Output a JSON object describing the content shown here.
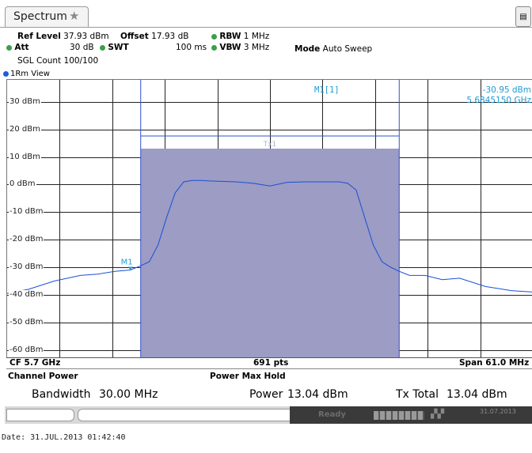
{
  "tab": {
    "title": "Spectrum",
    "star_icon": "star-icon"
  },
  "settings": {
    "ref_level_label": "Ref Level",
    "ref_level_value": "37.93 dBm",
    "offset_label": "Offset",
    "offset_value": "17.93 dB",
    "rbw_label": "RBW",
    "rbw_value": "1 MHz",
    "att_label": "Att",
    "att_value": "30 dB",
    "swt_label": "SWT",
    "swt_value": "100 ms",
    "vbw_label": "VBW",
    "vbw_value": "3 MHz",
    "mode_label": "Mode",
    "mode_value": "Auto Sweep",
    "sgl_count": "SGL Count 100/100"
  },
  "view": {
    "title": "1Rm View"
  },
  "marker": {
    "name": "M1[1]",
    "level": "-30.95 dBm",
    "freq": "5.6845150 GHz",
    "plot_label": "M1",
    "channel_label": "Tx1"
  },
  "chart_data": {
    "type": "line",
    "ylabels": [
      "30 dBm",
      "20 dBm",
      "10 dBm",
      "0 dBm",
      "-10 dBm",
      "-20 dBm",
      "-30 dBm",
      "-40 dBm",
      "-50 dBm",
      "-60 dBm"
    ],
    "y_values": [
      30,
      20,
      10,
      0,
      -10,
      -20,
      -30,
      -40,
      -50,
      -60
    ],
    "ylim": [
      -63,
      38
    ],
    "x_start_ghz": 5.6695,
    "x_center_ghz": 5.7,
    "x_span_mhz": 61.0,
    "channel_bw_mhz": 30.0,
    "channel_top_dbm": 13.04,
    "series": [
      {
        "values_x_mhz": [
          -30.5,
          -28,
          -25,
          -22,
          -20,
          -18,
          -16.2,
          -15,
          -14,
          -13,
          -12,
          -11,
          -10,
          -9,
          -8,
          -7,
          -6,
          -4,
          -2,
          0,
          2,
          4,
          6,
          7,
          8,
          9,
          10,
          11,
          12,
          13,
          14,
          15,
          16.2,
          18,
          20,
          22,
          25,
          28,
          30.5
        ],
        "values_dbm": [
          -39.5,
          -38,
          -35,
          -33,
          -32.5,
          -31.5,
          -31,
          -29.5,
          -28,
          -22,
          -12,
          -3,
          1,
          1.5,
          1.5,
          1.3,
          1.2,
          1.0,
          0.5,
          -0.5,
          0.8,
          1.0,
          1.0,
          1.0,
          1.0,
          0.5,
          -2,
          -12,
          -22,
          -28,
          -30,
          -31.5,
          -33,
          -33,
          -34.5,
          -34,
          -37,
          -38.5,
          -39
        ]
      }
    ],
    "footer": {
      "cf": "CF 5.7 GHz",
      "points": "691 pts",
      "span": "Span 61.0 MHz"
    }
  },
  "results": {
    "channel_power_label": "Channel Power",
    "power_max_hold_label": "Power Max Hold",
    "bandwidth_label": "Bandwidth",
    "bandwidth_value": "30.00 MHz",
    "power_label": "Power",
    "power_value": "13.04 dBm",
    "tx_total_label": "Tx Total",
    "tx_total_value": "13.04 dBm"
  },
  "status": {
    "ready": "Ready",
    "date_small": "31.07.2013"
  },
  "date_line": "Date: 31.JUL.2013  01:42:40",
  "colors": {
    "trace": "#1a4fd6",
    "channel_fill": "#9c9cc4",
    "marker": "#1e9bd6",
    "grid": "#222222"
  }
}
